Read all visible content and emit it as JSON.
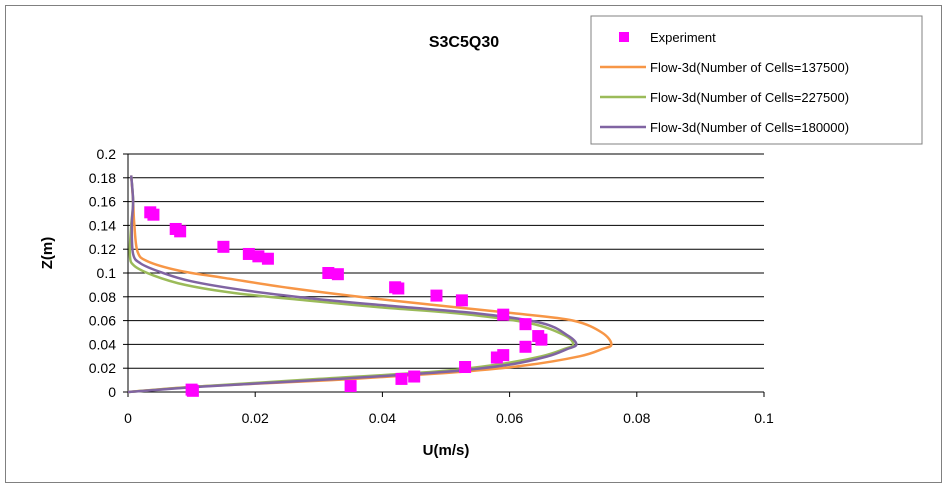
{
  "chart_data": {
    "type": "scatter",
    "title": "S3C5Q30",
    "xlabel": "U(m/s)",
    "ylabel": "Z(m)",
    "xlim": [
      0,
      0.1
    ],
    "ylim": [
      0,
      0.2
    ],
    "xticks": [
      "0",
      "0.02",
      "0.04",
      "0.06",
      "0.08",
      "0.1"
    ],
    "yticks": [
      "0",
      "0.02",
      "0.04",
      "0.06",
      "0.08",
      "0.1",
      "0.12",
      "0.14",
      "0.16",
      "0.18",
      "0.2"
    ],
    "grid": "horizontal",
    "legend_position": "top-right",
    "series": [
      {
        "name": "Experiment",
        "kind": "markers",
        "color": "#ff00ff",
        "points": [
          [
            0.0035,
            0.151
          ],
          [
            0.004,
            0.149
          ],
          [
            0.0075,
            0.137
          ],
          [
            0.0082,
            0.135
          ],
          [
            0.015,
            0.122
          ],
          [
            0.019,
            0.116
          ],
          [
            0.0205,
            0.114
          ],
          [
            0.022,
            0.112
          ],
          [
            0.0315,
            0.1
          ],
          [
            0.033,
            0.099
          ],
          [
            0.042,
            0.088
          ],
          [
            0.0425,
            0.087
          ],
          [
            0.0485,
            0.081
          ],
          [
            0.0525,
            0.077
          ],
          [
            0.059,
            0.065
          ],
          [
            0.0625,
            0.057
          ],
          [
            0.0645,
            0.047
          ],
          [
            0.065,
            0.044
          ],
          [
            0.0625,
            0.038
          ],
          [
            0.059,
            0.031
          ],
          [
            0.058,
            0.029
          ],
          [
            0.053,
            0.021
          ],
          [
            0.045,
            0.013
          ],
          [
            0.043,
            0.011
          ],
          [
            0.035,
            0.005
          ],
          [
            0.01,
            0.002
          ],
          [
            0.0102,
            0.001
          ]
        ]
      },
      {
        "name": "Flow-3d(Number of Cells=137500)",
        "kind": "line",
        "color": "#f79646",
        "points": [
          [
            0,
            0
          ],
          [
            0.012,
            0.005
          ],
          [
            0.032,
            0.01
          ],
          [
            0.05,
            0.016
          ],
          [
            0.062,
            0.022
          ],
          [
            0.071,
            0.03
          ],
          [
            0.0745,
            0.036
          ],
          [
            0.076,
            0.04
          ],
          [
            0.0745,
            0.05
          ],
          [
            0.07,
            0.06
          ],
          [
            0.061,
            0.066
          ],
          [
            0.05,
            0.072
          ],
          [
            0.038,
            0.079
          ],
          [
            0.026,
            0.087
          ],
          [
            0.015,
            0.096
          ],
          [
            0.008,
            0.102
          ],
          [
            0.003,
            0.11
          ],
          [
            0.0015,
            0.118
          ],
          [
            0.001,
            0.14
          ],
          [
            0.0008,
            0.16
          ],
          [
            0.0005,
            0.182
          ]
        ]
      },
      {
        "name": "Flow-3d(Number of Cells=227500)",
        "kind": "line",
        "color": "#9bbb59",
        "points": [
          [
            0,
            0
          ],
          [
            0.012,
            0.005
          ],
          [
            0.03,
            0.011
          ],
          [
            0.048,
            0.017
          ],
          [
            0.058,
            0.023
          ],
          [
            0.065,
            0.03
          ],
          [
            0.0685,
            0.036
          ],
          [
            0.07,
            0.04
          ],
          [
            0.0685,
            0.048
          ],
          [
            0.063,
            0.058
          ],
          [
            0.052,
            0.066
          ],
          [
            0.04,
            0.071
          ],
          [
            0.028,
            0.077
          ],
          [
            0.017,
            0.083
          ],
          [
            0.009,
            0.09
          ],
          [
            0.004,
            0.098
          ],
          [
            0.001,
            0.106
          ],
          [
            0.0003,
            0.115
          ],
          [
            0.0005,
            0.14
          ],
          [
            0.0008,
            0.16
          ],
          [
            0.0005,
            0.182
          ]
        ]
      },
      {
        "name": "Flow-3d(Number of Cells=180000)",
        "kind": "line",
        "color": "#8064a2",
        "points": [
          [
            0,
            0
          ],
          [
            0.013,
            0.005
          ],
          [
            0.033,
            0.011
          ],
          [
            0.05,
            0.017
          ],
          [
            0.06,
            0.023
          ],
          [
            0.066,
            0.03
          ],
          [
            0.069,
            0.036
          ],
          [
            0.0705,
            0.04
          ],
          [
            0.069,
            0.048
          ],
          [
            0.065,
            0.058
          ],
          [
            0.055,
            0.066
          ],
          [
            0.042,
            0.072
          ],
          [
            0.03,
            0.078
          ],
          [
            0.019,
            0.085
          ],
          [
            0.01,
            0.093
          ],
          [
            0.005,
            0.101
          ],
          [
            0.002,
            0.108
          ],
          [
            0.0008,
            0.116
          ],
          [
            0.0006,
            0.14
          ],
          [
            0.0008,
            0.16
          ],
          [
            0.0005,
            0.182
          ]
        ]
      }
    ]
  }
}
